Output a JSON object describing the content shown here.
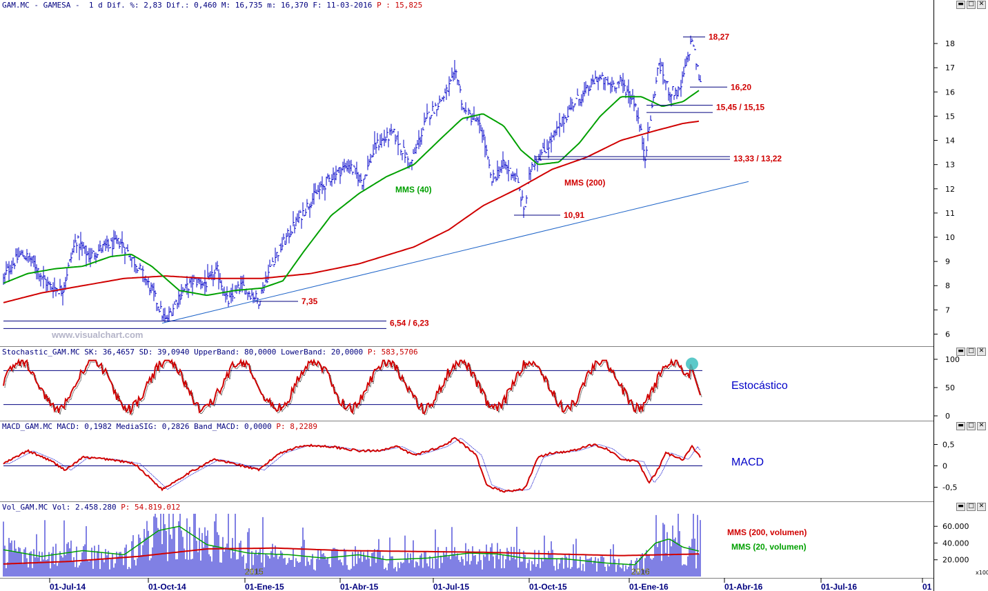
{
  "price_header": {
    "text": "GAM.MC - GAMESA -  1 d Dif. %: 2,83 Dif.: 0,460 M: 16,735 m: 16,370 F: 11-03-2016 ",
    "p_text": "P : 15,825"
  },
  "stoch_header": {
    "text": "Stochastic_GAM.MC SK: 36,4657 SD: 39,0940 UpperBand: 80,0000 LowerBand: 20,0000 ",
    "p_text": "P: 583,5706"
  },
  "macd_header": {
    "text": "MACD_GAM.MC MACD: 0,1982 MediaSIG: 0,2826 Band_MACD: 0,0000 ",
    "p_text": "P: 8,2289"
  },
  "vol_header": {
    "text": "Vol_GAM.MC Vol: 2.458.280 ",
    "p_text": "P: 54.819.012"
  },
  "window_controls": {
    "minimize": "▬",
    "maximize": "□",
    "close": "✕"
  },
  "watermark": "www.visualchart.com",
  "pane_labels": {
    "stoch": "Estocástico",
    "macd": "MACD",
    "vol_200": "MMS (200, volumen)",
    "vol_20": "MMS (20, volumen)",
    "x100": "x100"
  },
  "colors": {
    "bars": "#0000c8",
    "mms40": "#00a000",
    "mms200": "#d00000",
    "levels": "#00007f",
    "trend": "#1e64c8",
    "annot": "#d00000"
  },
  "chart_data": [
    {
      "type": "line",
      "name": "price",
      "ylim": [
        5.7,
        18.8
      ],
      "yticks": [
        6,
        7,
        8,
        9,
        10,
        11,
        12,
        13,
        14,
        15,
        16,
        17,
        18
      ],
      "xticks": [
        "01-Jul-14",
        "01-Oct-14",
        "01-Ene-15",
        "01-Abr-15",
        "01-Jul-15",
        "01-Oct-15",
        "01-Ene-16",
        "01-Abr-16",
        "01-Jul-16",
        "01"
      ],
      "year_marks": [
        "2015",
        "2016"
      ],
      "price_anchors": [
        [
          0,
          7.9
        ],
        [
          10,
          8.6
        ],
        [
          30,
          9.3
        ],
        [
          45,
          9.1
        ],
        [
          70,
          8.0
        ],
        [
          90,
          7.8
        ],
        [
          110,
          9.9
        ],
        [
          130,
          9.2
        ],
        [
          150,
          9.6
        ],
        [
          175,
          9.8
        ],
        [
          200,
          8.8
        ],
        [
          220,
          7.8
        ],
        [
          240,
          6.5
        ],
        [
          260,
          7.6
        ],
        [
          280,
          8.2
        ],
        [
          300,
          8.1
        ],
        [
          315,
          8.6
        ],
        [
          330,
          7.3
        ],
        [
          350,
          8.0
        ],
        [
          375,
          7.4
        ],
        [
          395,
          9.0
        ],
        [
          420,
          10.2
        ],
        [
          450,
          11.5
        ],
        [
          480,
          12.5
        ],
        [
          505,
          13.0
        ],
        [
          525,
          12.3
        ],
        [
          545,
          13.8
        ],
        [
          570,
          14.3
        ],
        [
          595,
          13.0
        ],
        [
          620,
          15.0
        ],
        [
          645,
          15.9
        ],
        [
          662,
          16.8
        ],
        [
          672,
          15.2
        ],
        [
          690,
          14.8
        ],
        [
          700,
          14.3
        ],
        [
          712,
          12.3
        ],
        [
          730,
          13.0
        ],
        [
          748,
          12.5
        ],
        [
          760,
          11.1
        ],
        [
          770,
          13.0
        ],
        [
          790,
          13.6
        ],
        [
          810,
          14.5
        ],
        [
          830,
          15.5
        ],
        [
          850,
          16.0
        ],
        [
          865,
          16.6
        ],
        [
          885,
          16.3
        ],
        [
          900,
          16.4
        ],
        [
          920,
          15.6
        ],
        [
          935,
          13.4
        ],
        [
          945,
          15.3
        ],
        [
          955,
          17.2
        ],
        [
          970,
          16.0
        ],
        [
          985,
          16.0
        ],
        [
          1003,
          18.2
        ],
        [
          1015,
          16.3
        ]
      ],
      "mms40_anchors": [
        [
          5,
          8.1
        ],
        [
          40,
          8.5
        ],
        [
          80,
          8.7
        ],
        [
          120,
          8.8
        ],
        [
          160,
          9.2
        ],
        [
          190,
          9.3
        ],
        [
          220,
          8.8
        ],
        [
          260,
          7.8
        ],
        [
          300,
          7.6
        ],
        [
          340,
          7.8
        ],
        [
          380,
          7.9
        ],
        [
          410,
          8.2
        ],
        [
          440,
          9.4
        ],
        [
          480,
          10.9
        ],
        [
          520,
          11.8
        ],
        [
          560,
          12.5
        ],
        [
          600,
          13.0
        ],
        [
          640,
          14.1
        ],
        [
          670,
          14.9
        ],
        [
          700,
          15.1
        ],
        [
          730,
          14.6
        ],
        [
          755,
          13.6
        ],
        [
          780,
          13.0
        ],
        [
          810,
          13.1
        ],
        [
          840,
          13.9
        ],
        [
          870,
          15.0
        ],
        [
          900,
          15.8
        ],
        [
          930,
          15.8
        ],
        [
          960,
          15.4
        ],
        [
          990,
          15.6
        ],
        [
          1015,
          16.1
        ]
      ],
      "mms200_anchors": [
        [
          5,
          7.3
        ],
        [
          60,
          7.7
        ],
        [
          120,
          8.0
        ],
        [
          180,
          8.3
        ],
        [
          240,
          8.4
        ],
        [
          300,
          8.3
        ],
        [
          380,
          8.3
        ],
        [
          450,
          8.5
        ],
        [
          520,
          8.9
        ],
        [
          600,
          9.6
        ],
        [
          650,
          10.3
        ],
        [
          700,
          11.3
        ],
        [
          750,
          12.0
        ],
        [
          800,
          12.8
        ],
        [
          850,
          13.3
        ],
        [
          900,
          14.0
        ],
        [
          950,
          14.4
        ],
        [
          990,
          14.7
        ],
        [
          1015,
          14.8
        ]
      ],
      "trendline": [
        [
          235,
          6.45
        ],
        [
          1085,
          12.3
        ]
      ],
      "support_levels": [
        {
          "label": "6,54 / 6,23",
          "values": [
            6.54,
            6.23
          ],
          "from": 5,
          "to": 560
        },
        {
          "label": "7,35",
          "values": [
            7.35
          ],
          "from": 370,
          "to": 432
        },
        {
          "label": "10,91",
          "values": [
            10.91
          ],
          "from": 745,
          "to": 812
        },
        {
          "label": "13,33 / 13,22",
          "values": [
            13.33,
            13.22
          ],
          "from": 775,
          "to": 1058
        },
        {
          "label": "15,45 / 15,15",
          "values": [
            15.45,
            15.15
          ],
          "from": 937,
          "to": 1033
        },
        {
          "label": "16,20",
          "values": [
            16.2
          ],
          "from": 1000,
          "to": 1054
        },
        {
          "label": "18,27",
          "values": [
            18.27
          ],
          "from": 990,
          "to": 1022
        }
      ],
      "series_labels": [
        {
          "name": "MMS (40)",
          "color": "#00a000"
        },
        {
          "name": "MMS (200)",
          "color": "#d00000"
        }
      ]
    },
    {
      "type": "line",
      "name": "stochastic",
      "ylim": [
        0,
        100
      ],
      "yticks": [
        0,
        50,
        100
      ],
      "bands": [
        80,
        20
      ],
      "last_value": 36.4657
    },
    {
      "type": "line",
      "name": "macd",
      "ylim": [
        -0.75,
        0.75
      ],
      "yticks": [
        "0,5",
        "0",
        "-0,5"
      ],
      "tick_values": [
        0.5,
        0,
        -0.5
      ],
      "anchors": [
        [
          5,
          0.05
        ],
        [
          40,
          0.35
        ],
        [
          70,
          0.15
        ],
        [
          95,
          -0.1
        ],
        [
          120,
          0.2
        ],
        [
          160,
          0.15
        ],
        [
          195,
          0.05
        ],
        [
          235,
          -0.55
        ],
        [
          270,
          -0.2
        ],
        [
          310,
          0.15
        ],
        [
          340,
          0.05
        ],
        [
          375,
          -0.1
        ],
        [
          405,
          0.3
        ],
        [
          440,
          0.48
        ],
        [
          480,
          0.45
        ],
        [
          520,
          0.35
        ],
        [
          545,
          0.35
        ],
        [
          575,
          0.45
        ],
        [
          600,
          0.25
        ],
        [
          640,
          0.45
        ],
        [
          660,
          0.65
        ],
        [
          690,
          0.25
        ],
        [
          705,
          -0.45
        ],
        [
          730,
          -0.6
        ],
        [
          760,
          -0.55
        ],
        [
          780,
          0.2
        ],
        [
          800,
          0.3
        ],
        [
          830,
          0.35
        ],
        [
          860,
          0.5
        ],
        [
          880,
          0.4
        ],
        [
          900,
          0.15
        ],
        [
          925,
          0.1
        ],
        [
          940,
          -0.4
        ],
        [
          950,
          -0.2
        ],
        [
          965,
          0.3
        ],
        [
          990,
          0.15
        ],
        [
          1003,
          0.45
        ],
        [
          1015,
          0.2
        ]
      ]
    },
    {
      "type": "bar",
      "name": "volume",
      "ylim": [
        0,
        75000
      ],
      "yticks": [
        "60.000",
        "40.000",
        "20.000"
      ],
      "tick_values": [
        60000,
        40000,
        20000
      ],
      "mms200_anchors": [
        [
          5,
          15000
        ],
        [
          100,
          18000
        ],
        [
          200,
          24000
        ],
        [
          300,
          33000
        ],
        [
          400,
          34000
        ],
        [
          500,
          31000
        ],
        [
          600,
          30000
        ],
        [
          700,
          29000
        ],
        [
          800,
          27000
        ],
        [
          900,
          25000
        ],
        [
          1015,
          27000
        ]
      ],
      "mms20_anchors": [
        [
          5,
          32000
        ],
        [
          60,
          24000
        ],
        [
          120,
          31000
        ],
        [
          180,
          26000
        ],
        [
          230,
          55000
        ],
        [
          260,
          60000
        ],
        [
          300,
          38000
        ],
        [
          360,
          28000
        ],
        [
          420,
          26000
        ],
        [
          470,
          22000
        ],
        [
          520,
          26000
        ],
        [
          560,
          20000
        ],
        [
          620,
          22000
        ],
        [
          680,
          28000
        ],
        [
          720,
          27000
        ],
        [
          760,
          22000
        ],
        [
          820,
          21000
        ],
        [
          880,
          16000
        ],
        [
          920,
          14000
        ],
        [
          950,
          40000
        ],
        [
          970,
          45000
        ],
        [
          990,
          35000
        ],
        [
          1015,
          30000
        ]
      ]
    }
  ]
}
